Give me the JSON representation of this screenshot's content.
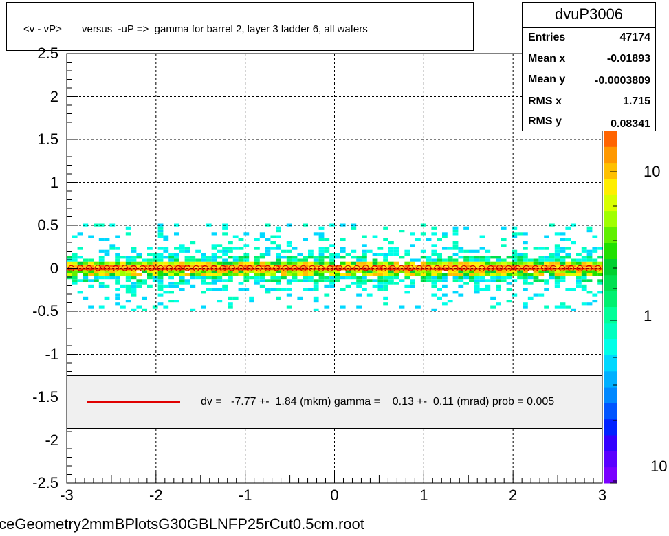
{
  "title": "<v - vP>       versus  -uP =>  gamma for barrel 2, layer 3 ladder 6, all wafers",
  "stats": {
    "name": "dvuP3006",
    "rows": [
      {
        "key": "Entries",
        "value": "47174"
      },
      {
        "key": "Mean x",
        "value": "-0.01893"
      },
      {
        "key": "Mean y",
        "value": "-0.0003809"
      },
      {
        "key": "RMS x",
        "value": "1.715"
      },
      {
        "key": "RMS y",
        "value": "0.08341"
      }
    ]
  },
  "fit_text": "dv =   -7.77 +-  1.84 (mkm) gamma =    0.13 +-  0.11 (mrad) prob = 0.005",
  "file_label": "ceGeometry2mmBPlotsG30GBLNFP25rCut0.5cm.root",
  "colors": {
    "fit_line": "#e00000",
    "profile_marker": "#cc0000",
    "palette": [
      "#7a00ff",
      "#5a00ff",
      "#3300ff",
      "#0022ff",
      "#0055ff",
      "#0088ff",
      "#00b0ff",
      "#00d8ff",
      "#00ffe8",
      "#00ffc0",
      "#00ff99",
      "#00f070",
      "#00e050",
      "#00d030",
      "#20e000",
      "#60f000",
      "#a0ff00",
      "#d8ff00",
      "#ffee00",
      "#ffc000",
      "#ff9800",
      "#ff6400"
    ]
  },
  "z_axis": {
    "labels": [
      "10",
      "1",
      "10"
    ],
    "scale": "log"
  },
  "chart_data": {
    "type": "heatmap",
    "title": "<v - vP>       versus  -uP =>  gamma for barrel 2, layer 3 ladder 6, all wafers",
    "xlabel": "",
    "ylabel": "",
    "xlim": [
      -3,
      3
    ],
    "ylim": [
      -2.5,
      2.5
    ],
    "x_ticks": [
      "-3",
      "-2",
      "-1",
      "0",
      "1",
      "2",
      "3"
    ],
    "y_ticks": [
      "2.5",
      "2",
      "1.5",
      "1",
      "0.5",
      "0",
      "-0.5",
      "-1",
      "-1.5",
      "-2",
      "-2.5"
    ],
    "grid": true,
    "z_scale": "log",
    "band": {
      "y_core": [
        -0.05,
        0.05
      ],
      "y_extent": [
        -0.5,
        0.5
      ]
    },
    "profile_x": [
      -2.95,
      -2.85,
      -2.75,
      -2.65,
      -2.55,
      -2.45,
      -2.35,
      -2.25,
      -2.15,
      -2.05,
      -1.95,
      -1.85,
      -1.75,
      -1.65,
      -1.55,
      -1.45,
      -1.35,
      -1.25,
      -1.15,
      -1.05,
      -0.95,
      -0.85,
      -0.75,
      -0.65,
      -0.55,
      -0.45,
      -0.35,
      -0.25,
      -0.15,
      -0.05,
      0.05,
      0.15,
      0.25,
      0.35,
      0.45,
      0.55,
      0.65,
      0.75,
      0.85,
      0.95,
      1.05,
      1.15,
      1.25,
      1.35,
      1.45,
      1.55,
      1.65,
      1.75,
      1.85,
      1.95,
      2.05,
      2.15,
      2.25,
      2.35,
      2.45,
      2.55,
      2.65,
      2.75,
      2.85,
      2.95
    ],
    "profile_y": [
      0.0,
      0.005,
      0.0,
      0.005,
      0.0,
      0.0,
      0.005,
      0.0,
      0.0,
      0.005,
      0.0,
      0.0,
      0.0,
      0.005,
      0.0,
      0.0,
      0.0,
      0.0,
      0.005,
      0.0,
      0.0,
      0.0,
      0.0,
      0.005,
      0.0,
      0.0,
      0.0,
      0.0,
      0.0,
      0.0,
      0.005,
      0.0,
      0.0,
      0.005,
      0.0,
      0.0,
      0.0,
      0.0,
      0.005,
      0.0,
      0.0,
      0.0,
      0.005,
      0.0,
      0.0,
      0.0,
      0.0,
      0.0,
      0.005,
      0.0,
      0.0,
      0.0,
      0.0,
      0.005,
      0.0,
      0.0,
      0.0,
      0.0,
      0.0,
      0.0
    ],
    "fit_line": {
      "slope": 0.00013,
      "intercept": -0.00777
    }
  }
}
